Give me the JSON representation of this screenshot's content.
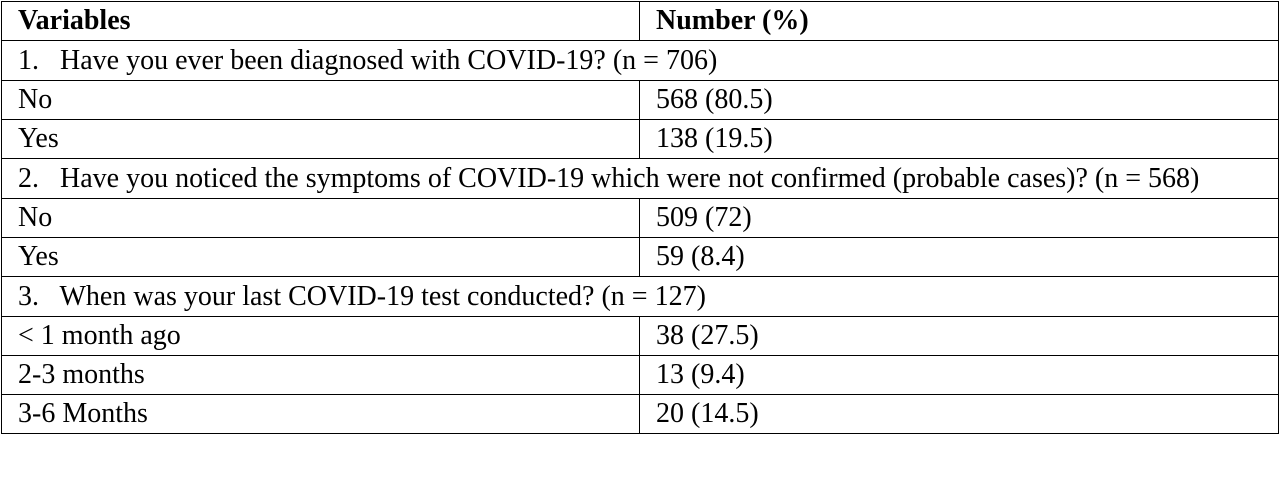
{
  "table": {
    "header": [
      "Variables",
      "Number (%)"
    ],
    "sections": [
      {
        "question": "1.   Have you ever been diagnosed with COVID-19? (n = 706)",
        "rows": [
          [
            "No",
            "568 (80.5)"
          ],
          [
            "Yes",
            "138 (19.5)"
          ]
        ]
      },
      {
        "question": "2.   Have you noticed the symptoms of COVID-19 which were not confirmed (probable cases)? (n = 568)",
        "rows": [
          [
            "No",
            "509 (72)"
          ],
          [
            "Yes",
            "59 (8.4)"
          ]
        ]
      },
      {
        "question": "3.   When was your last COVID-19 test conducted? (n = 127)",
        "rows": [
          [
            "< 1 month ago",
            "38 (27.5)"
          ],
          [
            "2-3 months",
            "13 (9.4)"
          ],
          [
            "3-6 Months",
            "20 (14.5)"
          ]
        ]
      }
    ]
  }
}
